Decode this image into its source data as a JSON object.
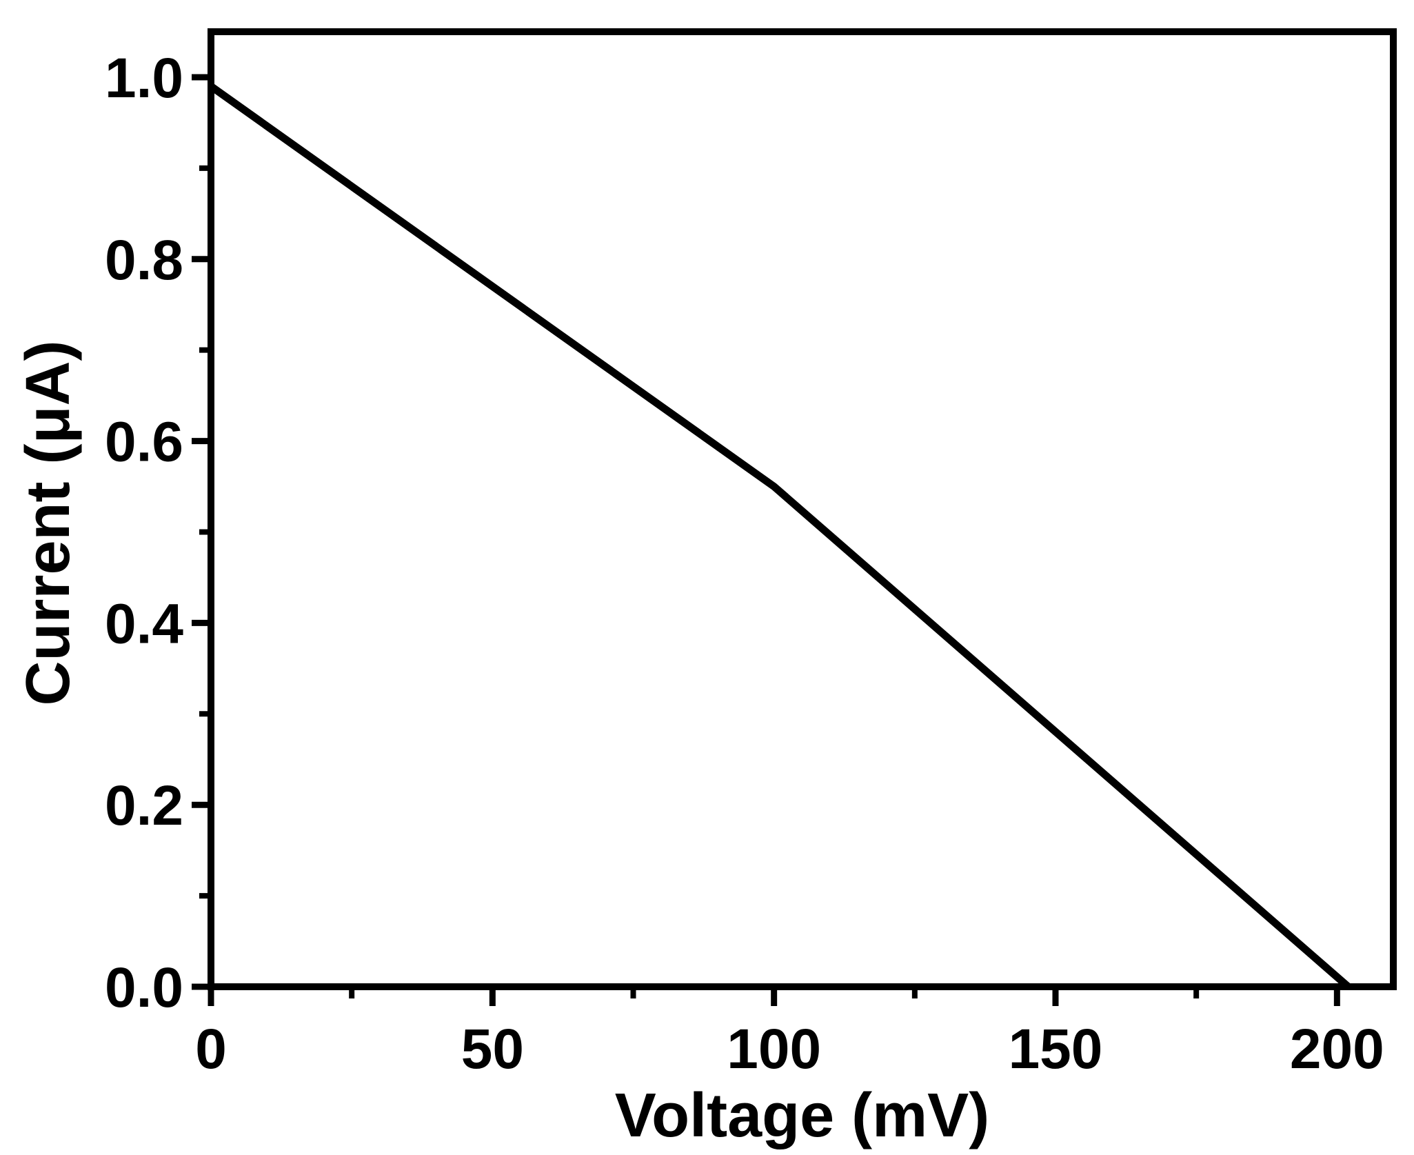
{
  "chart_data": {
    "type": "line",
    "title": "",
    "xlabel": "Voltage (mV)",
    "ylabel": "Current (μA)",
    "xlim": [
      0,
      210
    ],
    "ylim": [
      0,
      1.05
    ],
    "x_ticks": [
      0,
      50,
      100,
      150,
      200
    ],
    "x_tick_labels": [
      "0",
      "50",
      "100",
      "150",
      "200"
    ],
    "x_minor_ticks": [
      25,
      75,
      125,
      175
    ],
    "y_ticks": [
      0,
      0.2,
      0.4,
      0.6,
      0.8,
      1.0
    ],
    "y_tick_labels": [
      "0.0",
      "0.2",
      "0.4",
      "0.6",
      "0.8",
      "1.0"
    ],
    "y_minor_ticks": [
      0.1,
      0.3,
      0.5,
      0.7,
      0.9
    ],
    "grid": false,
    "legend": "none",
    "line_color": "#000000",
    "series": [
      {
        "x": [
          0,
          100,
          202
        ],
        "y": [
          0.99,
          0.55,
          0.0
        ]
      }
    ]
  }
}
